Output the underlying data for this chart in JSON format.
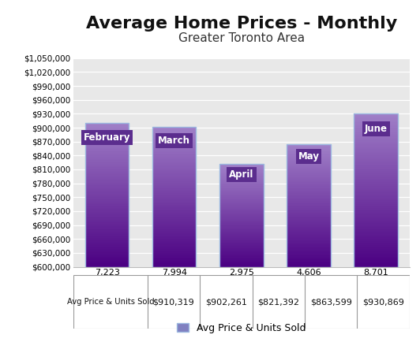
{
  "title": "Average Home Prices - Monthly",
  "subtitle": "Greater Toronto Area",
  "categories": [
    "February",
    "March",
    "April",
    "May",
    "June"
  ],
  "units_sold_labels": [
    "7,223",
    "7,994",
    "2,975",
    "4,606",
    "8,701"
  ],
  "avg_prices": [
    910319,
    902261,
    821392,
    863599,
    930869
  ],
  "avg_price_labels": [
    "$910,319",
    "$902,261",
    "$821,392",
    "$863,599",
    "$930,869"
  ],
  "ylim_min": 600000,
  "ylim_max": 1050000,
  "ytick_step": 30000,
  "bar_color_bottom": "#4B0082",
  "bar_color_top": "#9B7BC5",
  "bar_edge_color": "#9BB8E0",
  "legend_label": "Avg Price & Units Sold",
  "legend_facecolor": "#8080C0",
  "legend_edgecolor": "#9BB8E0",
  "label_bg_color": "#5B2D8E",
  "label_text_color": "#FFFFFF",
  "table_row_label": "Avg Price & Units Sold",
  "title_fontsize": 16,
  "subtitle_fontsize": 11,
  "axis_bg_color": "#E8E8E8",
  "fig_bg_color": "#FFFFFF"
}
